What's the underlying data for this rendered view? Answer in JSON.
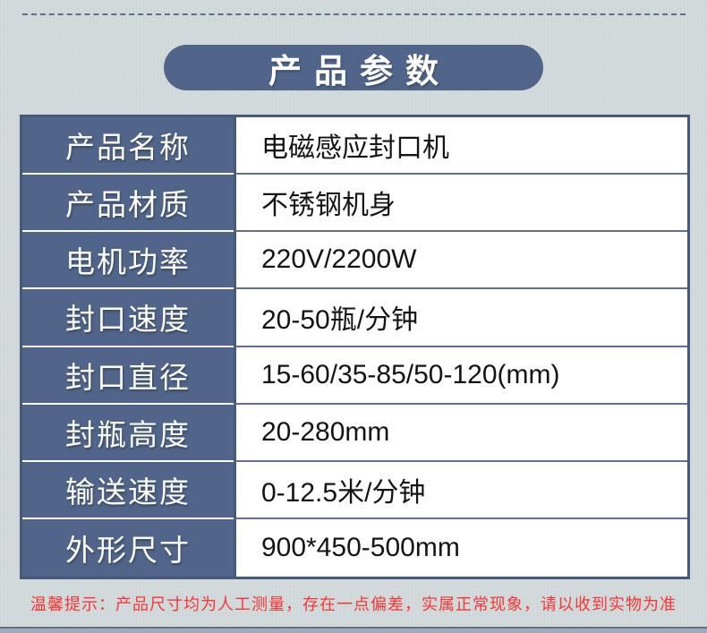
{
  "page": {
    "title": "产品参数",
    "tip": "温馨提示：产品尺寸均为人工测量，存在一点偏差，实属正常现象，请以收到实物为准"
  },
  "table": {
    "rows": [
      {
        "label": "产品名称",
        "value": "电磁感应封口机"
      },
      {
        "label": "产品材质",
        "value": "不锈钢机身"
      },
      {
        "label": "电机功率",
        "value": "220V/2200W"
      },
      {
        "label": "封口速度",
        "value": "20-50瓶/分钟"
      },
      {
        "label": "封口直径",
        "value": "15-60/35-85/50-120(mm)"
      },
      {
        "label": "封瓶高度",
        "value": "20-280mm"
      },
      {
        "label": "输送速度",
        "value": "0-12.5米/分钟"
      },
      {
        "label": "外形尺寸",
        "value": "900*450-500mm"
      }
    ]
  },
  "colors": {
    "accent_blue": "#51658a",
    "table_border": "#46597c",
    "value_divider": "#5d7191",
    "tip_red": "#f73535",
    "background": "#d2d9da"
  }
}
